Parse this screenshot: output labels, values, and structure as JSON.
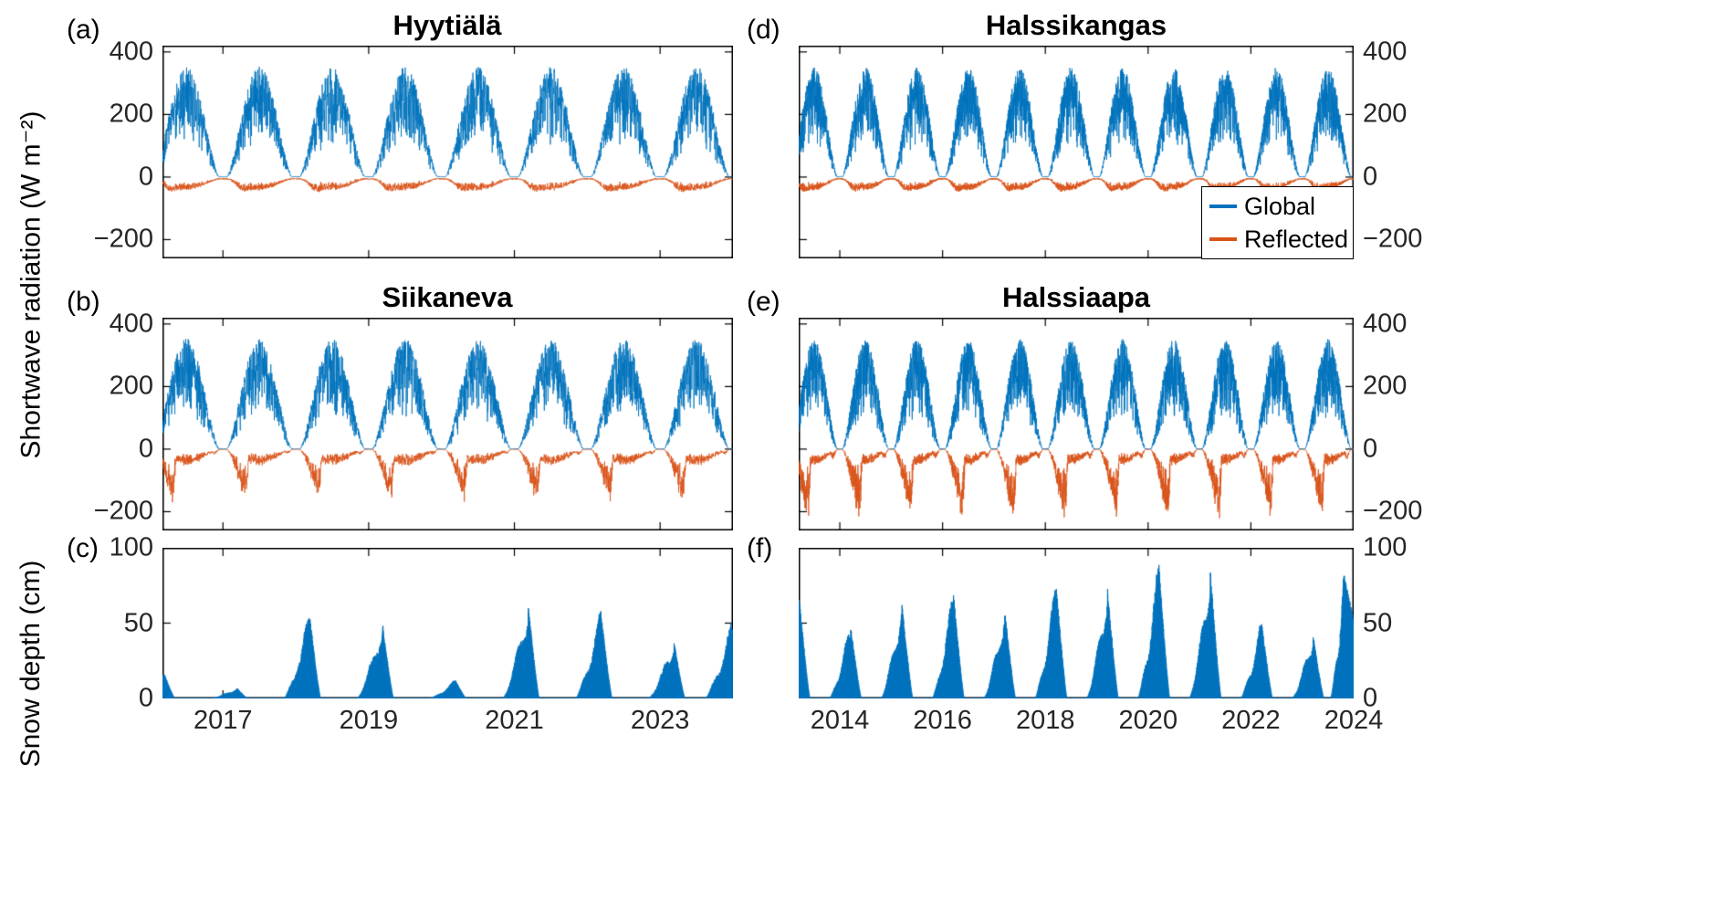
{
  "labels": {
    "radiation_ylabel": "Shortwave radiation (W m⁻²)",
    "snow_ylabel": "Snow depth (cm)"
  },
  "legend": {
    "items": [
      {
        "label": "Global",
        "color": "#0072BD"
      },
      {
        "label": "Reflected",
        "color": "#D95319"
      }
    ]
  },
  "chart_data": [
    {
      "id": "a",
      "panel_label": "(a)",
      "title": "Hyytiälä",
      "type": "line",
      "panel_type": "radiation",
      "site": "forest",
      "seed": 101,
      "x_range": [
        2016.17,
        2024.0
      ],
      "xticks": [
        2017,
        2019,
        2021,
        2023
      ],
      "show_xtick_labels": false,
      "ylim": [
        -260,
        420
      ],
      "yticks": [
        400,
        200,
        0,
        -200
      ],
      "ytick_side": "left",
      "global_peak": 352,
      "series": [
        {
          "name": "Global",
          "color": "#0072BD"
        },
        {
          "name": "Reflected",
          "color": "#D95319"
        }
      ]
    },
    {
      "id": "b",
      "panel_label": "(b)",
      "title": "Siikaneva",
      "type": "line",
      "panel_type": "radiation",
      "site": "open",
      "seed": 202,
      "melt_f": 0.34,
      "onset_f": 0.85,
      "snow_albedo_boost": 0.5,
      "x_range": [
        2016.17,
        2024.0
      ],
      "xticks": [
        2017,
        2019,
        2021,
        2023
      ],
      "show_xtick_labels": false,
      "ylim": [
        -260,
        420
      ],
      "yticks": [
        400,
        200,
        0,
        -200
      ],
      "ytick_side": "left",
      "global_peak": 352,
      "series": [
        {
          "name": "Global",
          "color": "#0072BD"
        },
        {
          "name": "Reflected",
          "color": "#D95319"
        }
      ]
    },
    {
      "id": "c",
      "panel_label": "(c)",
      "title": "",
      "type": "area",
      "panel_type": "snow",
      "seed": 303,
      "x_range": [
        2016.17,
        2024.0
      ],
      "xticks": [
        2017,
        2019,
        2021,
        2023
      ],
      "show_xtick_labels": true,
      "ylim": [
        0,
        100
      ],
      "yticks": [
        100,
        50,
        0
      ],
      "ytick_side": "left",
      "fill_color": "#0072BD",
      "winter_defaults": {
        "onset": 0.84,
        "peak_t": 0.19,
        "melt_t": 0.34
      },
      "winters": [
        {
          "start_year": 2015,
          "peak_cm": 17
        },
        {
          "start_year": 2016,
          "peak_cm": 7
        },
        {
          "start_year": 2017,
          "peak_cm": 55
        },
        {
          "start_year": 2018,
          "peak_cm": 50
        },
        {
          "start_year": 2019,
          "peak_cm": 12
        },
        {
          "start_year": 2020,
          "peak_cm": 62
        },
        {
          "start_year": 2021,
          "peak_cm": 57
        },
        {
          "start_year": 2022,
          "peak_cm": 38
        },
        {
          "start_year": 2023,
          "peak_cm": 48,
          "onset": 0.62,
          "peak_t": -0.02,
          "melt_t": 0.3
        }
      ]
    },
    {
      "id": "d",
      "panel_label": "(d)",
      "title": "Halssikangas",
      "type": "line",
      "panel_type": "radiation",
      "site": "forest",
      "seed": 404,
      "x_range": [
        2013.2,
        2024.0
      ],
      "xticks": [
        2014,
        2016,
        2018,
        2020,
        2022,
        2024
      ],
      "show_xtick_labels": false,
      "ylim": [
        -260,
        420
      ],
      "yticks": [
        400,
        200,
        0,
        -200
      ],
      "ytick_side": "right",
      "global_peak": 350,
      "series": [
        {
          "name": "Global",
          "color": "#0072BD"
        },
        {
          "name": "Reflected",
          "color": "#D95319"
        }
      ]
    },
    {
      "id": "e",
      "panel_label": "(e)",
      "title": "Halssiaapa",
      "type": "line",
      "panel_type": "radiation",
      "site": "open",
      "seed": 505,
      "melt_f": 0.42,
      "onset_f": 0.82,
      "snow_albedo_boost": 0.52,
      "x_range": [
        2013.2,
        2024.0
      ],
      "xticks": [
        2014,
        2016,
        2018,
        2020,
        2022,
        2024
      ],
      "show_xtick_labels": false,
      "ylim": [
        -260,
        420
      ],
      "yticks": [
        400,
        200,
        0,
        -200
      ],
      "ytick_side": "right",
      "global_peak": 350,
      "series": [
        {
          "name": "Global",
          "color": "#0072BD"
        },
        {
          "name": "Reflected",
          "color": "#D95319"
        }
      ]
    },
    {
      "id": "f",
      "panel_label": "(f)",
      "title": "",
      "type": "area",
      "panel_type": "snow",
      "seed": 606,
      "x_range": [
        2013.2,
        2024.0
      ],
      "xticks": [
        2014,
        2016,
        2018,
        2020,
        2022,
        2024
      ],
      "show_xtick_labels": true,
      "ylim": [
        0,
        100
      ],
      "yticks": [
        100,
        50,
        0
      ],
      "ytick_side": "right",
      "fill_color": "#0072BD",
      "winter_defaults": {
        "onset": 0.8,
        "peak_t": 0.21,
        "melt_t": 0.42
      },
      "winters": [
        {
          "start_year": 2012,
          "peak_cm": 66
        },
        {
          "start_year": 2013,
          "peak_cm": 48
        },
        {
          "start_year": 2014,
          "peak_cm": 62
        },
        {
          "start_year": 2015,
          "peak_cm": 70
        },
        {
          "start_year": 2016,
          "peak_cm": 58
        },
        {
          "start_year": 2017,
          "peak_cm": 75
        },
        {
          "start_year": 2018,
          "peak_cm": 72
        },
        {
          "start_year": 2019,
          "peak_cm": 88
        },
        {
          "start_year": 2020,
          "peak_cm": 85
        },
        {
          "start_year": 2021,
          "peak_cm": 50
        },
        {
          "start_year": 2022,
          "peak_cm": 42
        },
        {
          "start_year": 2023,
          "peak_cm": 80,
          "onset": 0.55,
          "peak_t": -0.18,
          "melt_t": 0.4
        }
      ]
    }
  ]
}
